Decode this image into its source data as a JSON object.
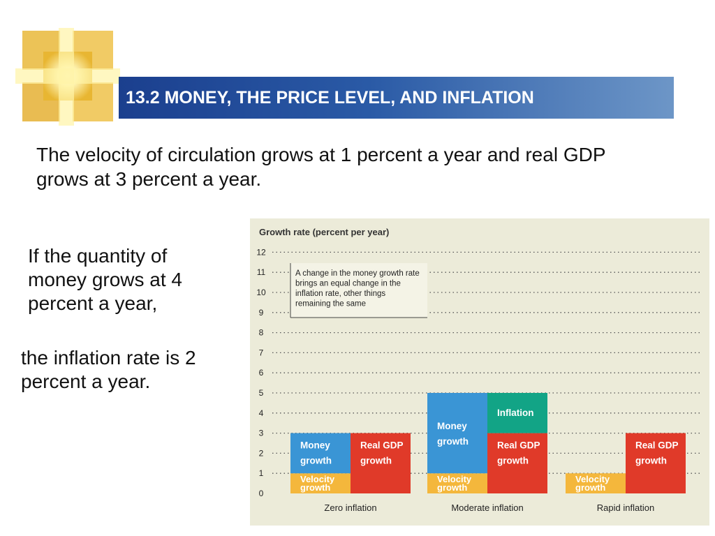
{
  "header": {
    "title": "13.2 MONEY, THE PRICE LEVEL, AND INFLATION"
  },
  "body_text": {
    "intro": "The velocity of circulation grows at 1 percent a year and real GDP grows at 3 percent a year.",
    "left_a": "If the quantity of money grows at 4 percent a year,",
    "left_b": "the inflation rate is 2 percent a year."
  },
  "colors": {
    "title_bar": "#1b3f8e",
    "chart_bg": "#ecebd9",
    "money_growth": "#3a95d5",
    "inflation": "#12a486",
    "real_gdp_growth": "#e03a29",
    "velocity_growth": "#f4b73c"
  },
  "chart_data": {
    "type": "bar",
    "ylabel": "Growth rate (percent per year)",
    "ylim": [
      0,
      12
    ],
    "y_ticks": [
      0,
      1,
      2,
      3,
      4,
      5,
      6,
      7,
      8,
      9,
      10,
      11,
      12
    ],
    "grid": true,
    "annotation": "A change in the money growth rate brings an equal change in the inflation rate, other things remaining the same",
    "categories": [
      "Zero inflation",
      "Moderate inflation",
      "Rapid inflation"
    ],
    "groups": [
      {
        "category": "Zero inflation",
        "left_stack": [
          {
            "label": "Velocity growth",
            "value": 1
          },
          {
            "label": "Money growth",
            "value": 2
          }
        ],
        "right_stack": [
          {
            "label": "Real GDP growth",
            "value": 3
          }
        ]
      },
      {
        "category": "Moderate inflation",
        "left_stack": [
          {
            "label": "Velocity growth",
            "value": 1
          },
          {
            "label": "Money growth",
            "value": 4
          }
        ],
        "right_stack": [
          {
            "label": "Real GDP growth",
            "value": 3
          },
          {
            "label": "Inflation",
            "value": 2
          }
        ]
      },
      {
        "category": "Rapid inflation",
        "left_stack": [
          {
            "label": "Velocity growth",
            "value": 1
          }
        ],
        "right_stack": [
          {
            "label": "Real GDP growth",
            "value": 3
          }
        ]
      }
    ]
  }
}
